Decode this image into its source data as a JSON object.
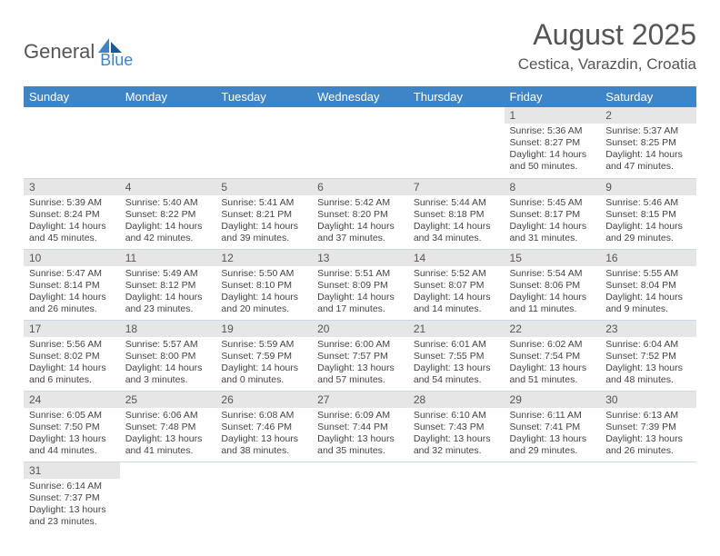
{
  "logo": {
    "part1": "General",
    "part2": "Blue"
  },
  "title": "August 2025",
  "location": "Cestica, Varazdin, Croatia",
  "colors": {
    "header_bg": "#3d85c6",
    "header_text": "#ffffff",
    "daynum_bg": "#e6e6e6",
    "text": "#555555",
    "row_border": "#c7d9ea"
  },
  "weekdays": [
    "Sunday",
    "Monday",
    "Tuesday",
    "Wednesday",
    "Thursday",
    "Friday",
    "Saturday"
  ],
  "weeks": [
    [
      null,
      null,
      null,
      null,
      null,
      {
        "d": "1",
        "sr": "Sunrise: 5:36 AM",
        "ss": "Sunset: 8:27 PM",
        "dl1": "Daylight: 14 hours",
        "dl2": "and 50 minutes."
      },
      {
        "d": "2",
        "sr": "Sunrise: 5:37 AM",
        "ss": "Sunset: 8:25 PM",
        "dl1": "Daylight: 14 hours",
        "dl2": "and 47 minutes."
      }
    ],
    [
      {
        "d": "3",
        "sr": "Sunrise: 5:39 AM",
        "ss": "Sunset: 8:24 PM",
        "dl1": "Daylight: 14 hours",
        "dl2": "and 45 minutes."
      },
      {
        "d": "4",
        "sr": "Sunrise: 5:40 AM",
        "ss": "Sunset: 8:22 PM",
        "dl1": "Daylight: 14 hours",
        "dl2": "and 42 minutes."
      },
      {
        "d": "5",
        "sr": "Sunrise: 5:41 AM",
        "ss": "Sunset: 8:21 PM",
        "dl1": "Daylight: 14 hours",
        "dl2": "and 39 minutes."
      },
      {
        "d": "6",
        "sr": "Sunrise: 5:42 AM",
        "ss": "Sunset: 8:20 PM",
        "dl1": "Daylight: 14 hours",
        "dl2": "and 37 minutes."
      },
      {
        "d": "7",
        "sr": "Sunrise: 5:44 AM",
        "ss": "Sunset: 8:18 PM",
        "dl1": "Daylight: 14 hours",
        "dl2": "and 34 minutes."
      },
      {
        "d": "8",
        "sr": "Sunrise: 5:45 AM",
        "ss": "Sunset: 8:17 PM",
        "dl1": "Daylight: 14 hours",
        "dl2": "and 31 minutes."
      },
      {
        "d": "9",
        "sr": "Sunrise: 5:46 AM",
        "ss": "Sunset: 8:15 PM",
        "dl1": "Daylight: 14 hours",
        "dl2": "and 29 minutes."
      }
    ],
    [
      {
        "d": "10",
        "sr": "Sunrise: 5:47 AM",
        "ss": "Sunset: 8:14 PM",
        "dl1": "Daylight: 14 hours",
        "dl2": "and 26 minutes."
      },
      {
        "d": "11",
        "sr": "Sunrise: 5:49 AM",
        "ss": "Sunset: 8:12 PM",
        "dl1": "Daylight: 14 hours",
        "dl2": "and 23 minutes."
      },
      {
        "d": "12",
        "sr": "Sunrise: 5:50 AM",
        "ss": "Sunset: 8:10 PM",
        "dl1": "Daylight: 14 hours",
        "dl2": "and 20 minutes."
      },
      {
        "d": "13",
        "sr": "Sunrise: 5:51 AM",
        "ss": "Sunset: 8:09 PM",
        "dl1": "Daylight: 14 hours",
        "dl2": "and 17 minutes."
      },
      {
        "d": "14",
        "sr": "Sunrise: 5:52 AM",
        "ss": "Sunset: 8:07 PM",
        "dl1": "Daylight: 14 hours",
        "dl2": "and 14 minutes."
      },
      {
        "d": "15",
        "sr": "Sunrise: 5:54 AM",
        "ss": "Sunset: 8:06 PM",
        "dl1": "Daylight: 14 hours",
        "dl2": "and 11 minutes."
      },
      {
        "d": "16",
        "sr": "Sunrise: 5:55 AM",
        "ss": "Sunset: 8:04 PM",
        "dl1": "Daylight: 14 hours",
        "dl2": "and 9 minutes."
      }
    ],
    [
      {
        "d": "17",
        "sr": "Sunrise: 5:56 AM",
        "ss": "Sunset: 8:02 PM",
        "dl1": "Daylight: 14 hours",
        "dl2": "and 6 minutes."
      },
      {
        "d": "18",
        "sr": "Sunrise: 5:57 AM",
        "ss": "Sunset: 8:00 PM",
        "dl1": "Daylight: 14 hours",
        "dl2": "and 3 minutes."
      },
      {
        "d": "19",
        "sr": "Sunrise: 5:59 AM",
        "ss": "Sunset: 7:59 PM",
        "dl1": "Daylight: 14 hours",
        "dl2": "and 0 minutes."
      },
      {
        "d": "20",
        "sr": "Sunrise: 6:00 AM",
        "ss": "Sunset: 7:57 PM",
        "dl1": "Daylight: 13 hours",
        "dl2": "and 57 minutes."
      },
      {
        "d": "21",
        "sr": "Sunrise: 6:01 AM",
        "ss": "Sunset: 7:55 PM",
        "dl1": "Daylight: 13 hours",
        "dl2": "and 54 minutes."
      },
      {
        "d": "22",
        "sr": "Sunrise: 6:02 AM",
        "ss": "Sunset: 7:54 PM",
        "dl1": "Daylight: 13 hours",
        "dl2": "and 51 minutes."
      },
      {
        "d": "23",
        "sr": "Sunrise: 6:04 AM",
        "ss": "Sunset: 7:52 PM",
        "dl1": "Daylight: 13 hours",
        "dl2": "and 48 minutes."
      }
    ],
    [
      {
        "d": "24",
        "sr": "Sunrise: 6:05 AM",
        "ss": "Sunset: 7:50 PM",
        "dl1": "Daylight: 13 hours",
        "dl2": "and 44 minutes."
      },
      {
        "d": "25",
        "sr": "Sunrise: 6:06 AM",
        "ss": "Sunset: 7:48 PM",
        "dl1": "Daylight: 13 hours",
        "dl2": "and 41 minutes."
      },
      {
        "d": "26",
        "sr": "Sunrise: 6:08 AM",
        "ss": "Sunset: 7:46 PM",
        "dl1": "Daylight: 13 hours",
        "dl2": "and 38 minutes."
      },
      {
        "d": "27",
        "sr": "Sunrise: 6:09 AM",
        "ss": "Sunset: 7:44 PM",
        "dl1": "Daylight: 13 hours",
        "dl2": "and 35 minutes."
      },
      {
        "d": "28",
        "sr": "Sunrise: 6:10 AM",
        "ss": "Sunset: 7:43 PM",
        "dl1": "Daylight: 13 hours",
        "dl2": "and 32 minutes."
      },
      {
        "d": "29",
        "sr": "Sunrise: 6:11 AM",
        "ss": "Sunset: 7:41 PM",
        "dl1": "Daylight: 13 hours",
        "dl2": "and 29 minutes."
      },
      {
        "d": "30",
        "sr": "Sunrise: 6:13 AM",
        "ss": "Sunset: 7:39 PM",
        "dl1": "Daylight: 13 hours",
        "dl2": "and 26 minutes."
      }
    ],
    [
      {
        "d": "31",
        "sr": "Sunrise: 6:14 AM",
        "ss": "Sunset: 7:37 PM",
        "dl1": "Daylight: 13 hours",
        "dl2": "and 23 minutes."
      },
      null,
      null,
      null,
      null,
      null,
      null
    ]
  ]
}
